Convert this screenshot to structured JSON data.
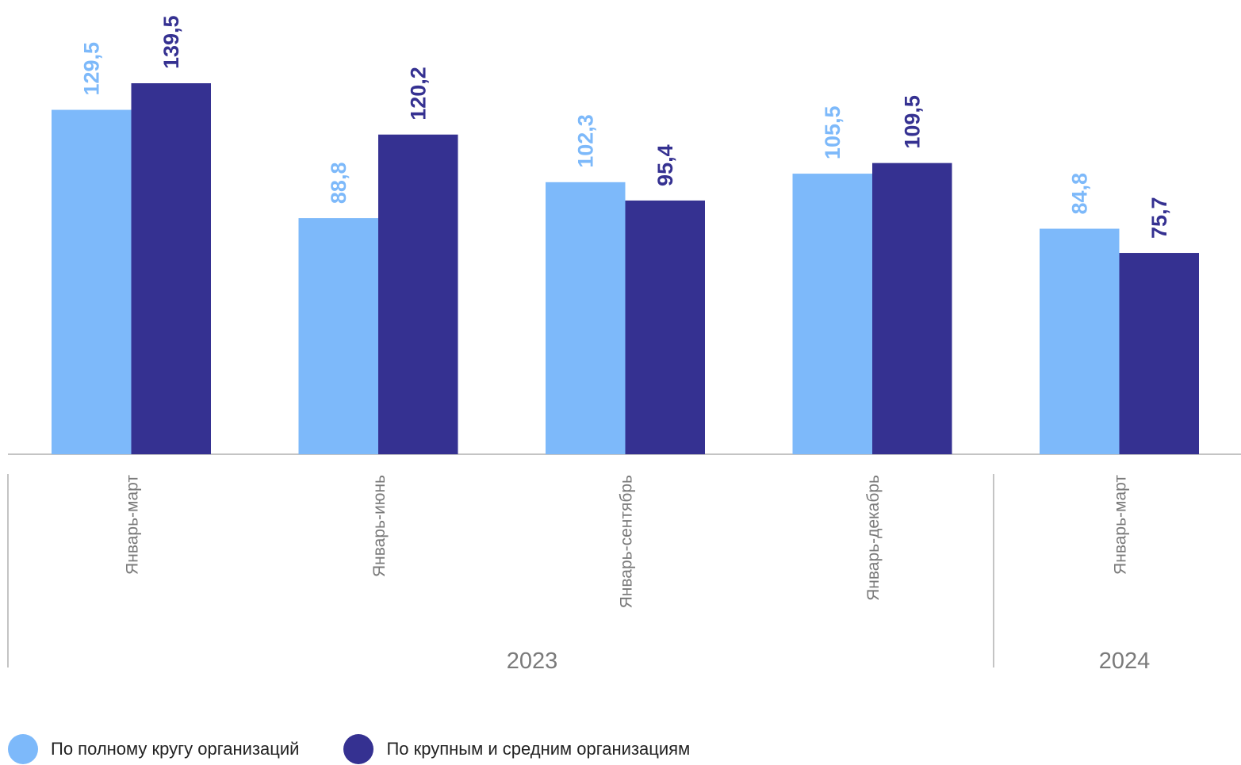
{
  "chart_data": {
    "type": "bar",
    "groups": [
      {
        "label": "2023",
        "categories": [
          "Январь-март",
          "Январь-июнь",
          "Январь-сентябрь",
          "Январь-декабрь"
        ]
      },
      {
        "label": "2024",
        "categories": [
          "Январь-март"
        ]
      }
    ],
    "categories": [
      "Январь-март",
      "Январь-июнь",
      "Январь-сентябрь",
      "Январь-декабрь",
      "Январь-март"
    ],
    "series": [
      {
        "name": "По полному кругу организаций",
        "color": "#7db9fa",
        "values": [
          129.5,
          88.8,
          102.3,
          105.5,
          84.8
        ],
        "labels": [
          "129,5",
          "88,8",
          "102,3",
          "105,5",
          "84,8"
        ]
      },
      {
        "name": "По крупным и средним организациям",
        "color": "#353191",
        "values": [
          139.5,
          120.2,
          95.4,
          109.5,
          75.7
        ],
        "labels": [
          "139,5",
          "120,2",
          "95,4",
          "109,5",
          "75,7"
        ]
      }
    ],
    "ylim": [
      0,
      139.5
    ],
    "grid": false,
    "legend_position": "bottom-left",
    "axis_color": "#c4c4c4",
    "category_label_color": "#7a7a7a"
  }
}
